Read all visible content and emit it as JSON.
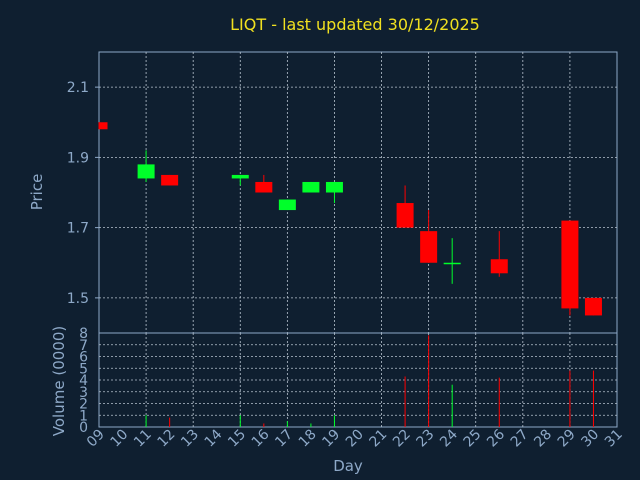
{
  "chart_data": {
    "type": "candlestick",
    "title": "LIQT - last updated 30/12/2025",
    "xlabel": "Day",
    "price_panel": {
      "ylabel": "Price",
      "ylim": [
        1.4,
        2.2
      ],
      "yticks": [
        "1.5",
        "1.7",
        "1.9",
        "2.1"
      ]
    },
    "volume_panel": {
      "ylabel": "Volume (0000)",
      "ylim": [
        0,
        8
      ],
      "yticks": [
        "0",
        "1",
        "2",
        "3",
        "4",
        "5",
        "6",
        "7",
        "8"
      ]
    },
    "x_ticks": [
      "09",
      "10",
      "11",
      "12",
      "13",
      "14",
      "15",
      "16",
      "17",
      "18",
      "19",
      "20",
      "21",
      "22",
      "23",
      "24",
      "25",
      "26",
      "27",
      "28",
      "29",
      "30",
      "31"
    ],
    "grid": true,
    "colors": {
      "up": "#00ff2a",
      "down": "#ff0000",
      "background": "#0f1f30",
      "plot_area": "#0f1f30",
      "title": "#f0e020",
      "axis_text": "#8ea9c8"
    },
    "candles": [
      {
        "day": "09",
        "open": 2.0,
        "high": 2.0,
        "low": 1.98,
        "close": 1.98,
        "volume": 0.0
      },
      {
        "day": "11",
        "open": 1.84,
        "high": 1.92,
        "low": 1.83,
        "close": 1.88,
        "volume": 1.0
      },
      {
        "day": "12",
        "open": 1.85,
        "high": 1.85,
        "low": 1.82,
        "close": 1.82,
        "volume": 0.8
      },
      {
        "day": "15",
        "open": 1.84,
        "high": 1.85,
        "low": 1.82,
        "close": 1.85,
        "volume": 1.0
      },
      {
        "day": "16",
        "open": 1.83,
        "high": 1.85,
        "low": 1.8,
        "close": 1.8,
        "volume": 0.3
      },
      {
        "day": "17",
        "open": 1.75,
        "high": 1.78,
        "low": 1.75,
        "close": 1.78,
        "volume": 0.5
      },
      {
        "day": "18",
        "open": 1.8,
        "high": 1.83,
        "low": 1.8,
        "close": 1.83,
        "volume": 0.3
      },
      {
        "day": "19",
        "open": 1.8,
        "high": 1.83,
        "low": 1.77,
        "close": 1.83,
        "volume": 1.0
      },
      {
        "day": "22",
        "open": 1.77,
        "high": 1.82,
        "low": 1.7,
        "close": 1.7,
        "volume": 4.3
      },
      {
        "day": "23",
        "open": 1.69,
        "high": 1.75,
        "low": 1.6,
        "close": 1.6,
        "volume": 7.8
      },
      {
        "day": "24",
        "open": 1.6,
        "high": 1.67,
        "low": 1.54,
        "close": 1.6,
        "volume": 3.6
      },
      {
        "day": "26",
        "open": 1.61,
        "high": 1.69,
        "low": 1.56,
        "close": 1.57,
        "volume": 4.2
      },
      {
        "day": "29",
        "open": 1.72,
        "high": 1.72,
        "low": 1.45,
        "close": 1.47,
        "volume": 4.8
      },
      {
        "day": "30",
        "open": 1.5,
        "high": 1.5,
        "low": 1.45,
        "close": 1.45,
        "volume": 4.8
      }
    ]
  }
}
